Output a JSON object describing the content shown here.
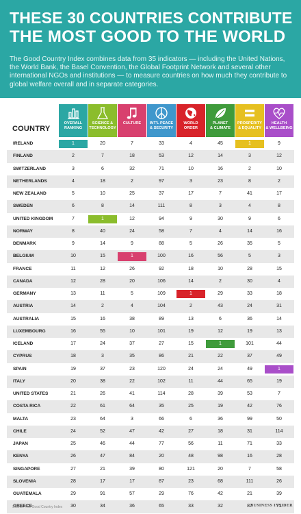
{
  "header": {
    "title_line1": "THESE 30 COUNTRIES CONTRIBUTE",
    "title_line2": "THE MOST GOOD TO THE WORLD",
    "description": "The Good Country Index combines data from 35 indicators — including the United Nations, the World Bank, the Basel Convention, the Global Footprint Network and several other international NGOs and institutions — to measure countries on how much they contribute to global welfare overall and in separate categories."
  },
  "table": {
    "country_header": "COUNTRY",
    "columns": [
      {
        "label": "OVERALL\nRANKING",
        "color": "#2ba7a4",
        "icon": "bar-chart-icon"
      },
      {
        "label": "SCIENCE &\nTECHNOLOGY",
        "color": "#8bbd2c",
        "icon": "flask-icon"
      },
      {
        "label": "CULTURE",
        "color": "#d8406e",
        "icon": "music-note-icon"
      },
      {
        "label": "INT'L PEACE\n& SECURITY",
        "color": "#3f97cc",
        "icon": "peace-icon"
      },
      {
        "label": "WORLD\nORDER",
        "color": "#d8232a",
        "icon": "globe-icon"
      },
      {
        "label": "PLANET\n& CLIMATE",
        "color": "#3f9b3b",
        "icon": "leaf-icon"
      },
      {
        "label": "PROSPERITY\n& EQUALITY",
        "color": "#e6c020",
        "icon": "equals-icon"
      },
      {
        "label": "HEALTH\n& WELLBEING",
        "color": "#a94ec9",
        "icon": "heart-pulse-icon"
      }
    ],
    "rows": [
      {
        "country": "IRELAND",
        "values": [
          "1",
          "20",
          "7",
          "33",
          "4",
          "45",
          "1",
          "9"
        ]
      },
      {
        "country": "FINLAND",
        "values": [
          "2",
          "7",
          "18",
          "53",
          "12",
          "14",
          "3",
          "12"
        ]
      },
      {
        "country": "SWITZERLAND",
        "values": [
          "3",
          "6",
          "32",
          "71",
          "10",
          "16",
          "2",
          "10"
        ]
      },
      {
        "country": "NETHERLANDS",
        "values": [
          "4",
          "18",
          "2",
          "97",
          "3",
          "23",
          "8",
          "2"
        ]
      },
      {
        "country": "NEW ZEALAND",
        "values": [
          "5",
          "10",
          "25",
          "37",
          "17",
          "7",
          "41",
          "17"
        ]
      },
      {
        "country": "SWEDEN",
        "values": [
          "6",
          "8",
          "14",
          "111",
          "8",
          "3",
          "4",
          "8"
        ]
      },
      {
        "country": "UNITED KINGDOM",
        "values": [
          "7",
          "1",
          "12",
          "94",
          "9",
          "30",
          "9",
          "6"
        ]
      },
      {
        "country": "NORWAY",
        "values": [
          "8",
          "40",
          "24",
          "58",
          "7",
          "4",
          "14",
          "16"
        ]
      },
      {
        "country": "DENMARK",
        "values": [
          "9",
          "14",
          "9",
          "88",
          "5",
          "26",
          "35",
          "5"
        ]
      },
      {
        "country": "BELGIUM",
        "values": [
          "10",
          "15",
          "1",
          "100",
          "16",
          "56",
          "5",
          "3"
        ]
      },
      {
        "country": "FRANCE",
        "values": [
          "11",
          "12",
          "26",
          "92",
          "18",
          "10",
          "28",
          "15"
        ]
      },
      {
        "country": "CANADA",
        "values": [
          "12",
          "28",
          "20",
          "106",
          "14",
          "2",
          "30",
          "4"
        ]
      },
      {
        "country": "GERMANY",
        "values": [
          "13",
          "11",
          "5",
          "109",
          "1",
          "29",
          "33",
          "18"
        ]
      },
      {
        "country": "AUSTRIA",
        "values": [
          "14",
          "2",
          "4",
          "104",
          "2",
          "43",
          "24",
          "31"
        ]
      },
      {
        "country": "AUSTRALIA",
        "values": [
          "15",
          "16",
          "38",
          "89",
          "13",
          "6",
          "36",
          "14"
        ]
      },
      {
        "country": "LUXEMBOURG",
        "values": [
          "16",
          "55",
          "10",
          "101",
          "19",
          "12",
          "19",
          "13"
        ]
      },
      {
        "country": "ICELAND",
        "values": [
          "17",
          "24",
          "37",
          "27",
          "15",
          "1",
          "101",
          "44"
        ]
      },
      {
        "country": "CYPRUS",
        "values": [
          "18",
          "3",
          "35",
          "86",
          "21",
          "22",
          "37",
          "49"
        ]
      },
      {
        "country": "SPAIN",
        "values": [
          "19",
          "37",
          "23",
          "120",
          "24",
          "24",
          "49",
          "1"
        ]
      },
      {
        "country": "ITALY",
        "values": [
          "20",
          "38",
          "22",
          "102",
          "11",
          "44",
          "65",
          "19"
        ]
      },
      {
        "country": "UNITED STATES",
        "values": [
          "21",
          "26",
          "41",
          "114",
          "28",
          "39",
          "53",
          "7"
        ]
      },
      {
        "country": "COSTA RICA",
        "values": [
          "22",
          "61",
          "64",
          "35",
          "25",
          "19",
          "42",
          "76"
        ]
      },
      {
        "country": "MALTA",
        "values": [
          "23",
          "64",
          "3",
          "66",
          "6",
          "36",
          "99",
          "50"
        ]
      },
      {
        "country": "CHILE",
        "values": [
          "24",
          "52",
          "47",
          "42",
          "27",
          "18",
          "31",
          "114"
        ]
      },
      {
        "country": "JAPAN",
        "values": [
          "25",
          "46",
          "44",
          "77",
          "56",
          "11",
          "71",
          "33"
        ]
      },
      {
        "country": "KENYA",
        "values": [
          "26",
          "47",
          "84",
          "20",
          "48",
          "98",
          "16",
          "28"
        ]
      },
      {
        "country": "SINGAPORE",
        "values": [
          "27",
          "21",
          "39",
          "80",
          "121",
          "20",
          "7",
          "58"
        ]
      },
      {
        "country": "SLOVENIA",
        "values": [
          "28",
          "17",
          "17",
          "87",
          "23",
          "68",
          "111",
          "26"
        ]
      },
      {
        "country": "GUATEMALA",
        "values": [
          "29",
          "91",
          "57",
          "29",
          "76",
          "42",
          "21",
          "39"
        ]
      },
      {
        "country": "GREECE",
        "values": [
          "30",
          "34",
          "36",
          "65",
          "33",
          "32",
          "87",
          "71"
        ]
      }
    ]
  },
  "footer": {
    "source": "Source: The Good Country Index",
    "brand": "BUSINESS INSIDER"
  }
}
